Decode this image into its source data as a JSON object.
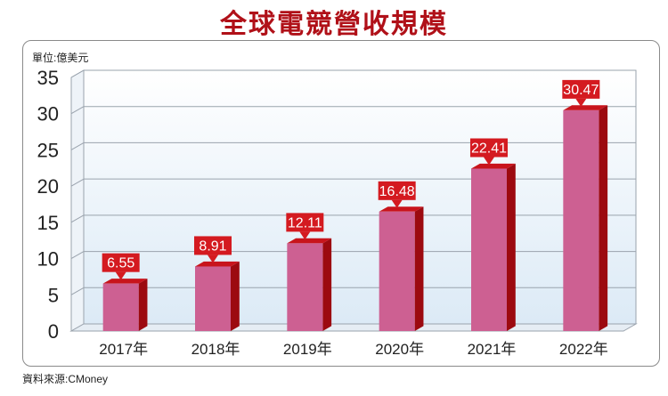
{
  "chart_data": {
    "type": "bar",
    "title": "全球電競營收規模",
    "unit_label": "單位:億美元",
    "source": "資料來源:CMoney",
    "categories": [
      "2017年",
      "2018年",
      "2019年",
      "2020年",
      "2021年",
      "2022年"
    ],
    "values": [
      6.55,
      8.91,
      12.11,
      16.48,
      22.41,
      30.47
    ],
    "value_labels": [
      "6.55",
      "8.91",
      "12.11",
      "16.48",
      "22.41",
      "30.47"
    ],
    "ylim": [
      0,
      35
    ],
    "yticks": [
      "0",
      "5",
      "10",
      "15",
      "20",
      "25",
      "30",
      "35"
    ],
    "grid": true,
    "legend": "none",
    "colors": {
      "bar_front": "#cd6092",
      "bar_side": "#9c0a10",
      "bar_top": "#c8141c",
      "label_bg": "#d41a20",
      "title": "#b01018",
      "plot_bg_top": "#ffffff",
      "plot_bg_bottom": "#dceaf6"
    }
  }
}
